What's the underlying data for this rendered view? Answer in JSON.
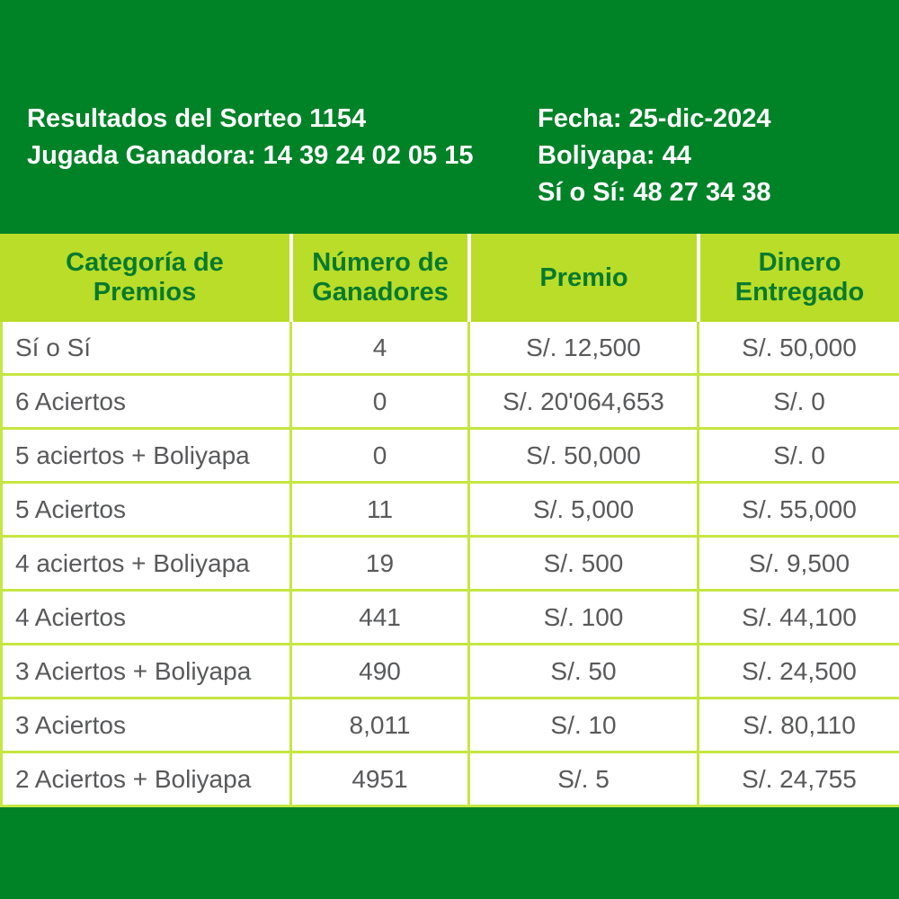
{
  "colors": {
    "brand_green": "#008227",
    "table_header_bg": "#b9dd28",
    "table_header_text": "#077a2f",
    "grid_line": "#c6e642",
    "body_text": "#58595b",
    "banner_text": "#ffffff"
  },
  "banner": {
    "left": [
      "Resultados del Sorteo 1154",
      "Jugada Ganadora: 14 39 24 02 05 15"
    ],
    "right": [
      "Fecha: 25-dic-2024",
      "Boliyapa: 44",
      "Sí o Sí: 48 27 34 38"
    ]
  },
  "table": {
    "headers": [
      "Categoría de Premios",
      "Número de Ganadores",
      "Premio",
      "Dinero Entregado"
    ],
    "rows": [
      {
        "category": "Sí o Sí",
        "winners": "4",
        "prize": "S/. 12,500",
        "paid": "S/. 50,000"
      },
      {
        "category": "6 Aciertos",
        "winners": "0",
        "prize": "S/. 20'064,653",
        "paid": "S/. 0"
      },
      {
        "category": "5 aciertos + Boliyapa",
        "winners": "0",
        "prize": "S/. 50,000",
        "paid": "S/. 0"
      },
      {
        "category": "5 Aciertos",
        "winners": "11",
        "prize": "S/. 5,000",
        "paid": "S/. 55,000"
      },
      {
        "category": "4 aciertos + Boliyapa",
        "winners": "19",
        "prize": "S/. 500",
        "paid": "S/. 9,500"
      },
      {
        "category": "4 Aciertos",
        "winners": "441",
        "prize": "S/. 100",
        "paid": "S/. 44,100"
      },
      {
        "category": "3 Aciertos + Boliyapa",
        "winners": "490",
        "prize": "S/. 50",
        "paid": "S/. 24,500"
      },
      {
        "category": "3 Aciertos",
        "winners": "8,011",
        "prize": "S/. 10",
        "paid": "S/. 80,110"
      },
      {
        "category": "2 Aciertos + Boliyapa",
        "winners": "4951",
        "prize": "S/. 5",
        "paid": "S/. 24,755"
      }
    ]
  }
}
